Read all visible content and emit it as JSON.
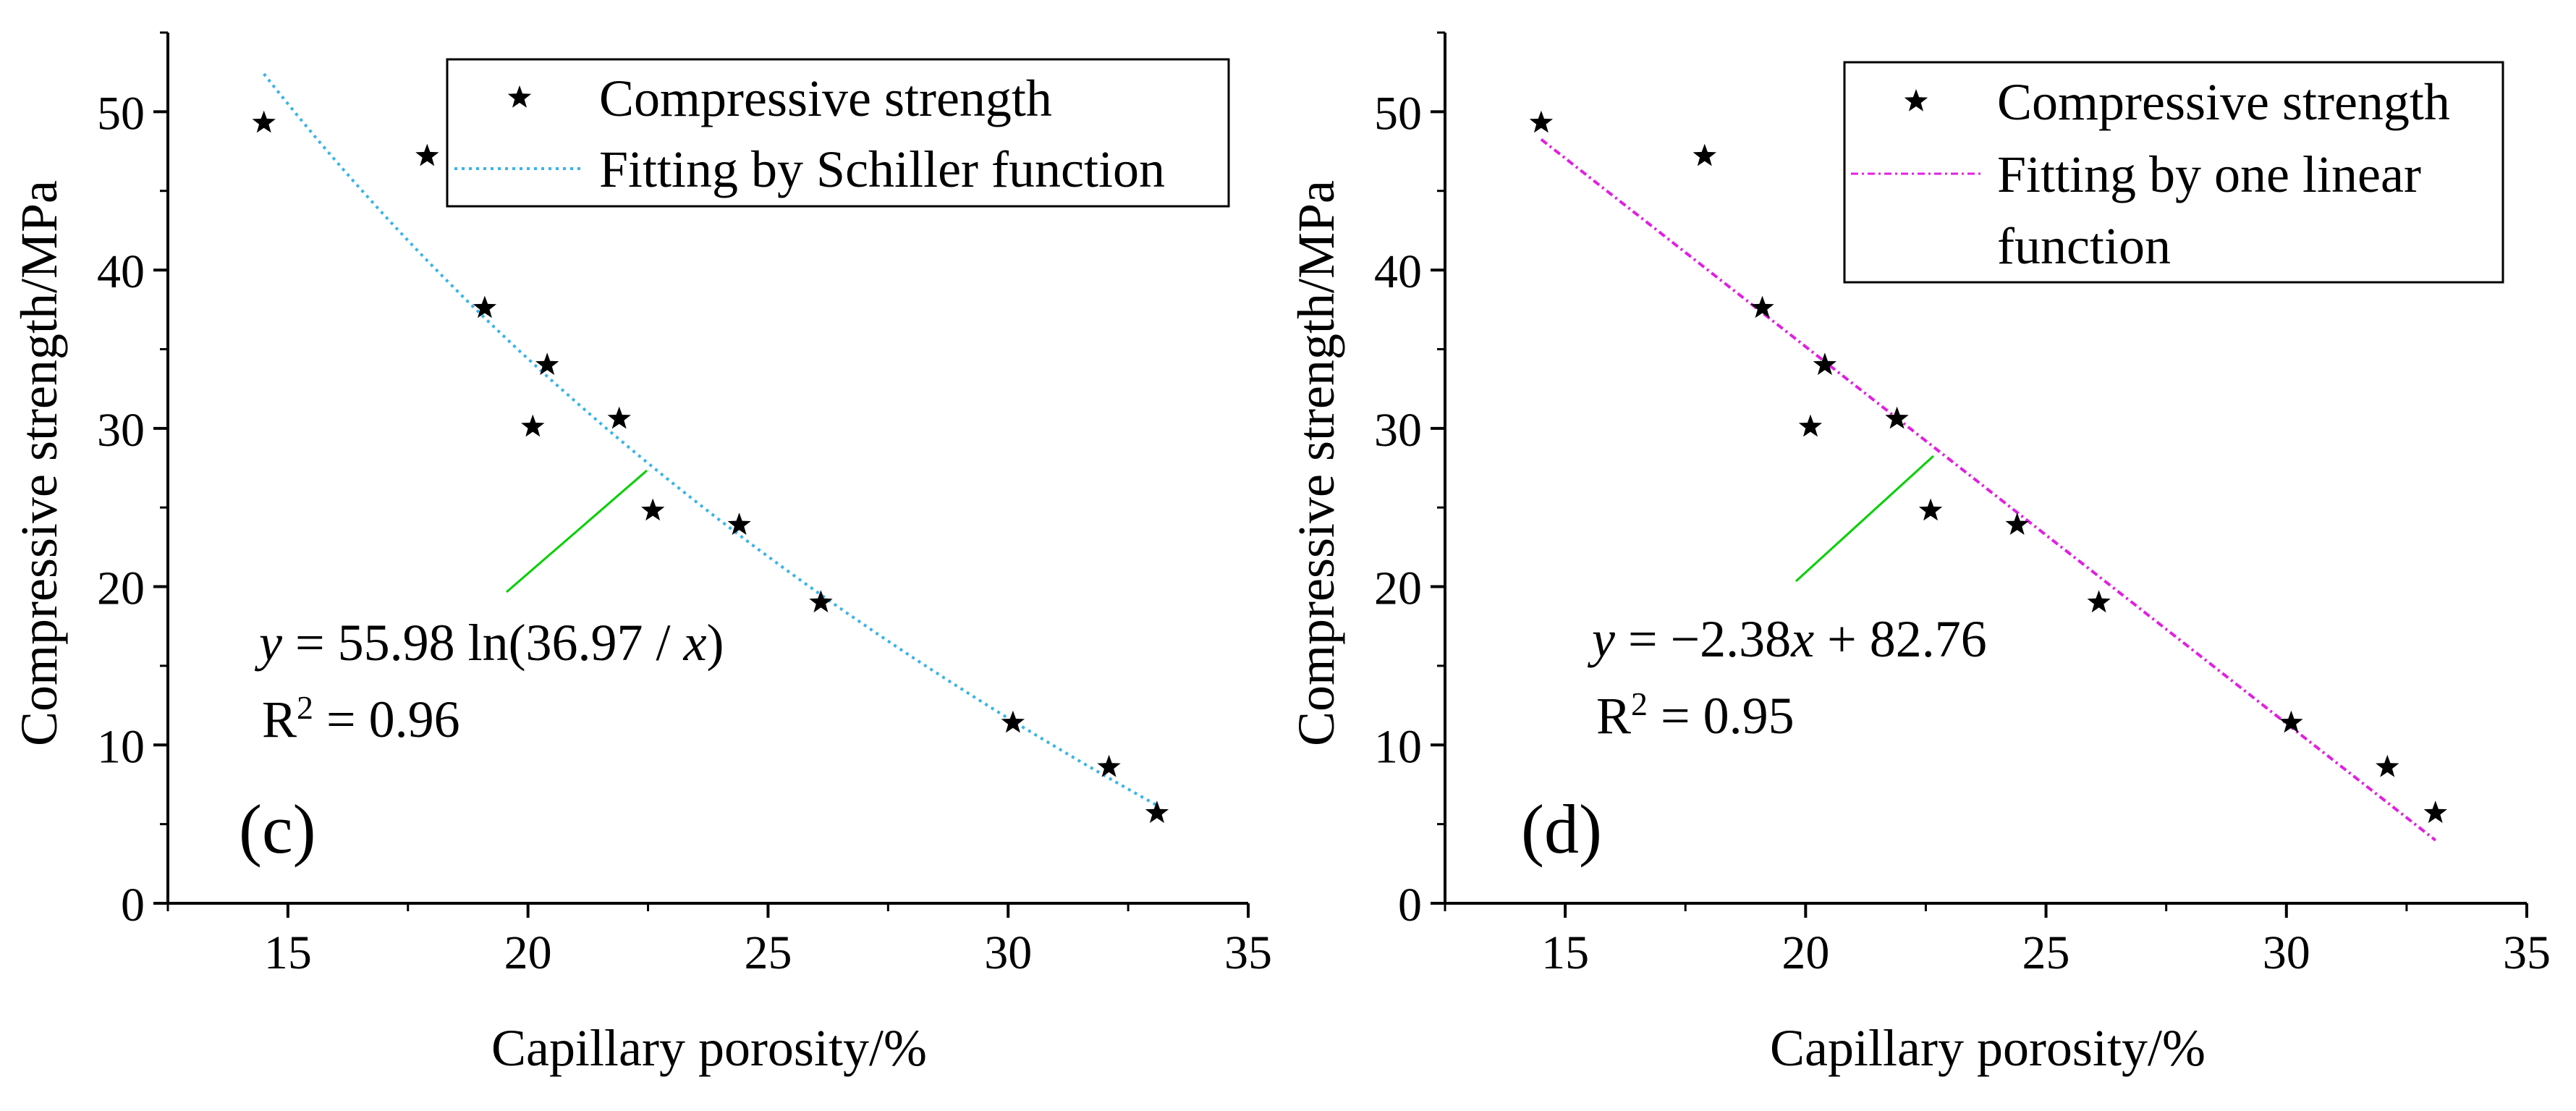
{
  "chart_data": [
    {
      "type": "scatter",
      "panel_label": "(c)",
      "xlabel": "Capillary porosity/%",
      "ylabel": "Compressive strength/MPa",
      "xlim": [
        12.5,
        35
      ],
      "ylim": [
        0,
        55
      ],
      "xticks": [
        "15",
        "20",
        "25",
        "30",
        "35"
      ],
      "yticks": [
        "0",
        "10",
        "20",
        "30",
        "40",
        "50"
      ],
      "grid": false,
      "legend_position": "top-right",
      "series": [
        {
          "name": "Compressive strength",
          "marker": "star",
          "color": "#000000",
          "x": [
            14.5,
            17.9,
            19.1,
            20.1,
            20.4,
            21.9,
            22.6,
            24.4,
            26.1,
            30.1,
            32.1,
            33.1
          ],
          "y": [
            49.3,
            47.2,
            37.6,
            30.1,
            34.0,
            30.6,
            24.8,
            23.9,
            19.0,
            11.4,
            8.6,
            5.7
          ]
        },
        {
          "name": "Fitting by Schiller function",
          "line_style": "dotted",
          "color": "#3ab3ea",
          "function": "y = 55.98 ln(36.97 / x)",
          "coefficients": {
            "a": 55.98,
            "b": 36.97
          },
          "x_range": [
            14.5,
            33.1
          ]
        }
      ],
      "annotation": {
        "equation_var": "y",
        "equation_rest": " = 55.98 ln(36.97 / ",
        "equation_var2": "x",
        "equation_end": ")",
        "r2_base": "R",
        "r2_sup": "2",
        "r2_rest": " = 0.96",
        "pointer_color": "#00d000"
      }
    },
    {
      "type": "scatter",
      "panel_label": "(d)",
      "xlabel": "Capillary porosity/%",
      "ylabel": "Compressive strength/MPa",
      "xlim": [
        12.5,
        35
      ],
      "ylim": [
        0,
        55
      ],
      "xticks": [
        "15",
        "20",
        "25",
        "30",
        "35"
      ],
      "yticks": [
        "0",
        "10",
        "20",
        "30",
        "40",
        "50"
      ],
      "grid": false,
      "legend_position": "top-right",
      "series": [
        {
          "name": "Compressive strength",
          "marker": "star",
          "color": "#000000",
          "x": [
            14.5,
            17.9,
            19.1,
            20.1,
            20.4,
            21.9,
            22.6,
            24.4,
            26.1,
            30.1,
            32.1,
            33.1
          ],
          "y": [
            49.3,
            47.2,
            37.6,
            30.1,
            34.0,
            30.6,
            24.8,
            23.9,
            19.0,
            11.4,
            8.6,
            5.7
          ]
        },
        {
          "name": "Fitting by one linear function",
          "name_lines": [
            "Fitting by one linear",
            "function"
          ],
          "line_style": "dash-dot",
          "color": "#e020e0",
          "function": "y = −2.38x + 82.76",
          "coefficients": {
            "slope": -2.38,
            "intercept": 82.76
          },
          "x_range": [
            14.5,
            33.1
          ]
        }
      ],
      "annotation": {
        "equation_var": "y",
        "equation_rest": " = −2.38",
        "equation_var2": "x",
        "equation_end": " + 82.76",
        "r2_base": "R",
        "r2_sup": "2",
        "r2_rest": " = 0.95",
        "pointer_color": "#00d000"
      }
    }
  ]
}
